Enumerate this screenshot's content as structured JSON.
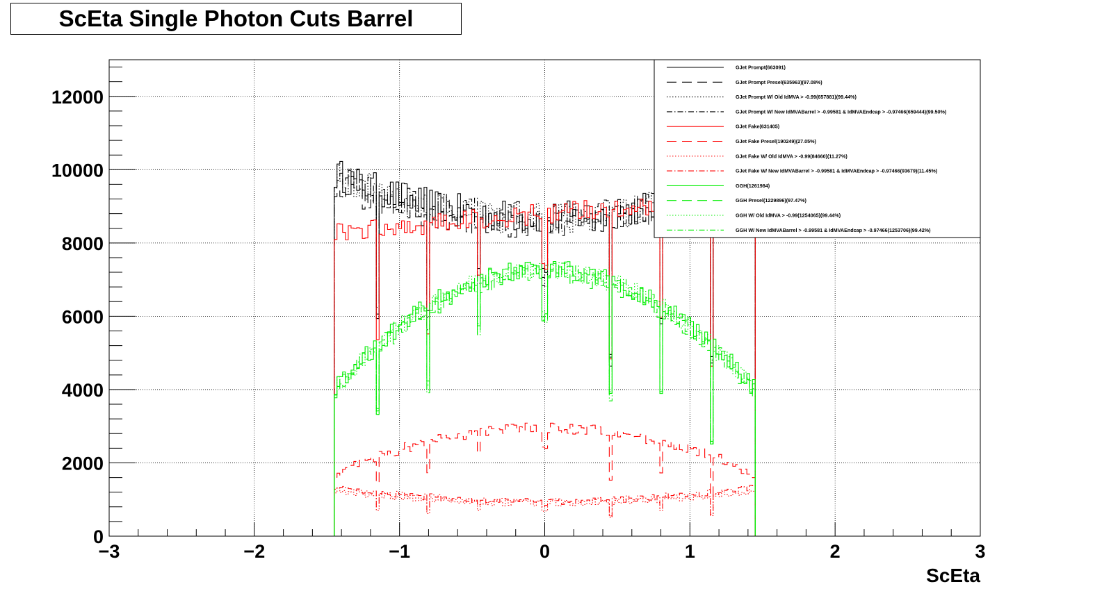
{
  "chart_data": {
    "type": "line",
    "title": "ScEta Single Photon Cuts Barrel",
    "xlabel": "ScEta",
    "ylabel": "",
    "xlim": [
      -3,
      3
    ],
    "ylim": [
      0,
      13000
    ],
    "x_ticks": [
      -3,
      -2,
      -1,
      0,
      1,
      2,
      3
    ],
    "x_tick_labels": [
      "−3",
      "−2",
      "−1",
      "0",
      "1",
      "2",
      "3"
    ],
    "y_ticks": [
      0,
      2000,
      4000,
      6000,
      8000,
      10000,
      12000
    ],
    "y_tick_labels": [
      "0",
      "2000",
      "4000",
      "6000",
      "8000",
      "10000",
      "12000"
    ],
    "grid": true,
    "legend_position": "top-right",
    "x_range": [
      -1.45,
      1.45
    ],
    "gaps": [
      {
        "x": -1.15,
        "depth": 0.35
      },
      {
        "x": -0.8,
        "depth": 0.35
      },
      {
        "x": -0.45,
        "depth": 0.18
      },
      {
        "x": 0.0,
        "depth": 0.18
      },
      {
        "x": 0.45,
        "depth": 0.45
      },
      {
        "x": 0.8,
        "depth": 0.35
      },
      {
        "x": 1.15,
        "depth": 0.5
      }
    ],
    "series": [
      {
        "name": "GJet Prompt(663091)",
        "color": "#000000",
        "dash": "solid",
        "profile": "flat",
        "edge": 9900,
        "center": 8700,
        "noise": 450
      },
      {
        "name": "GJet Prompt Presel(635963)(97.08%)",
        "color": "#000000",
        "dash": "long",
        "profile": "flat",
        "edge": 9600,
        "center": 8500,
        "noise": 400
      },
      {
        "name": "GJet Prompt W/ Old IdMVA > -0.99(657881)(99.44%)",
        "color": "#000000",
        "dash": "dot",
        "profile": "flat",
        "edge": 9850,
        "center": 8650,
        "noise": 430
      },
      {
        "name": "GJet Prompt W/ New IdMVABarrel > -0.99581 & IdMVAEndcap > -0.97466(659444)(99.50%)",
        "color": "#000000",
        "dash": "dashdot",
        "profile": "flat",
        "edge": 9870,
        "center": 8680,
        "noise": 440
      },
      {
        "name": "GJet Fake(631405)",
        "color": "#ff0000",
        "dash": "solid",
        "profile": "rising",
        "edge": 8300,
        "center": 9300,
        "noise": 280
      },
      {
        "name": "GJet Fake Presel(190249)(27.05%)",
        "color": "#ff0000",
        "dash": "long",
        "profile": "dome",
        "edge": 1700,
        "center": 2950,
        "noise": 150
      },
      {
        "name": "GJet Fake W/ Old IdMVA > -0.99(84660)(11.27%)",
        "color": "#ff0000",
        "dash": "dot",
        "profile": "bowl",
        "edge": 1250,
        "center": 900,
        "noise": 90
      },
      {
        "name": "GJet Fake W/ New IdMVABarrel > -0.99581 & IdMVAEndcap > -0.97466(93679)(11.45%)",
        "color": "#ff0000",
        "dash": "dashdot",
        "profile": "bowl",
        "edge": 1350,
        "center": 950,
        "noise": 90
      },
      {
        "name": "GGH(1261984)",
        "color": "#00ee00",
        "dash": "solid",
        "profile": "dome",
        "edge": 4000,
        "center": 7300,
        "noise": 260
      },
      {
        "name": "GGH Presel(1229896)(97.47%)",
        "color": "#00ee00",
        "dash": "long",
        "profile": "dome",
        "edge": 3900,
        "center": 7150,
        "noise": 250
      },
      {
        "name": "GGH W/ Old IdMVA > -0.99(1254065)(99.44%)",
        "color": "#00ee00",
        "dash": "dot",
        "profile": "dome",
        "edge": 3980,
        "center": 7260,
        "noise": 255
      },
      {
        "name": "GGH W/ New IdMVABarrel > -0.99581 & IdMVAEndcap > -0.97466(1253706)(99.42%)",
        "color": "#00ee00",
        "dash": "dashdot",
        "profile": "dome",
        "edge": 3970,
        "center": 7250,
        "noise": 255
      }
    ]
  }
}
